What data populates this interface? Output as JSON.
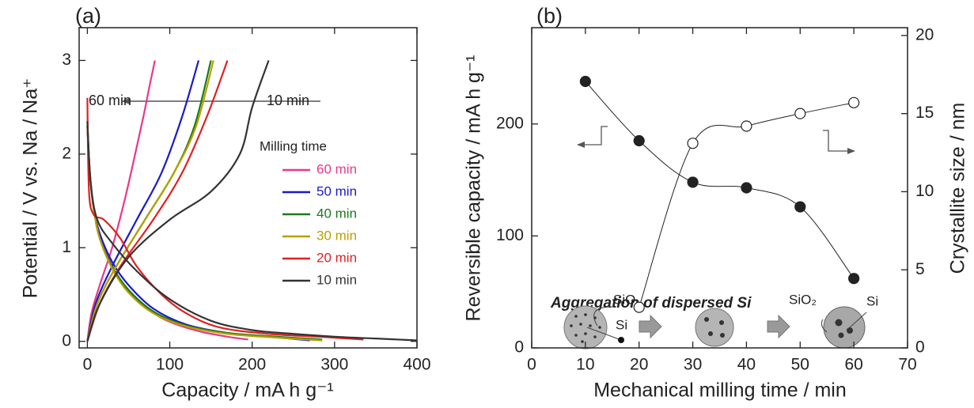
{
  "chart_data": [
    {
      "type": "line",
      "label": "(a)",
      "xlabel": "Capacity / mA h g⁻¹",
      "ylabel": "Potential / V vs. Na / Na⁺",
      "xlim": [
        -10,
        400
      ],
      "ylim": [
        -0.07,
        3.35
      ],
      "xticks": [
        0,
        100,
        200,
        300,
        400
      ],
      "yticks": [
        0,
        1,
        2,
        3
      ],
      "annotations": [
        "60 min",
        "10 min"
      ],
      "legend_title": "Milling time",
      "legend": true,
      "series": [
        {
          "name": "60 min",
          "color": "#e8388a",
          "x": [
            0,
            3,
            8,
            15,
            25,
            40,
            60,
            90,
            130,
            170,
            195,
            null,
            0,
            5,
            15,
            30,
            45,
            58,
            68,
            76,
            82
          ],
          "values": [
            2.3,
            1.8,
            1.4,
            1.15,
            0.9,
            0.65,
            0.45,
            0.25,
            0.12,
            0.05,
            0.02,
            null,
            0,
            0.3,
            0.6,
            1.0,
            1.5,
            2.0,
            2.4,
            2.75,
            3.0
          ]
        },
        {
          "name": "50 min",
          "color": "#1a1acc",
          "x": [
            0,
            3,
            8,
            15,
            30,
            50,
            80,
            120,
            170,
            220,
            270,
            null,
            0,
            10,
            30,
            60,
            90,
            115,
            135
          ],
          "values": [
            2.3,
            1.8,
            1.4,
            1.15,
            0.85,
            0.6,
            0.35,
            0.18,
            0.09,
            0.05,
            0.01,
            null,
            0,
            0.4,
            0.8,
            1.3,
            1.8,
            2.4,
            3.0
          ]
        },
        {
          "name": "40 min",
          "color": "#1a7a1a",
          "x": [
            0,
            3,
            8,
            15,
            30,
            50,
            80,
            120,
            170,
            230,
            285,
            null,
            0,
            12,
            35,
            70,
            105,
            130,
            150
          ],
          "values": [
            2.35,
            1.8,
            1.4,
            1.1,
            0.8,
            0.55,
            0.32,
            0.17,
            0.09,
            0.05,
            0.02,
            null,
            0,
            0.4,
            0.8,
            1.3,
            1.8,
            2.3,
            3.0
          ]
        },
        {
          "name": "30 min",
          "color": "#b8a000",
          "x": [
            0,
            3,
            8,
            15,
            30,
            50,
            80,
            120,
            170,
            230,
            285,
            null,
            0,
            12,
            35,
            70,
            105,
            132,
            153
          ],
          "values": [
            2.3,
            1.8,
            1.4,
            1.1,
            0.78,
            0.52,
            0.3,
            0.16,
            0.08,
            0.04,
            0.01,
            null,
            0,
            0.4,
            0.8,
            1.3,
            1.8,
            2.3,
            3.0
          ]
        },
        {
          "name": "20 min",
          "color": "#e02020",
          "x": [
            0,
            2,
            8,
            20,
            40,
            60,
            90,
            120,
            160,
            220,
            280,
            335,
            null,
            0,
            15,
            40,
            80,
            115,
            145,
            170
          ],
          "values": [
            2.6,
            1.6,
            1.35,
            1.3,
            1.1,
            0.8,
            0.5,
            0.3,
            0.15,
            0.08,
            0.05,
            0.02,
            null,
            0,
            0.4,
            0.8,
            1.3,
            1.8,
            2.4,
            3.0
          ]
        },
        {
          "name": "10 min",
          "color": "#333333",
          "x": [
            0,
            4,
            12,
            30,
            60,
            100,
            150,
            200,
            250,
            300,
            350,
            400,
            null,
            0,
            15,
            50,
            100,
            150,
            185,
            200,
            220
          ],
          "values": [
            2.35,
            1.7,
            1.3,
            1.05,
            0.75,
            0.45,
            0.22,
            0.12,
            0.08,
            0.05,
            0.03,
            0.01,
            null,
            0,
            0.4,
            0.9,
            1.3,
            1.6,
            2.0,
            2.5,
            3.0
          ]
        }
      ]
    },
    {
      "type": "line",
      "label": "(b)",
      "markers": true,
      "xlabel": "Mechanical milling time / min",
      "ylabel": "Reversible capacity / mA h g⁻¹",
      "y2label": "Crystallite size / nm",
      "xlim": [
        0,
        70
      ],
      "ylim": [
        0,
        286
      ],
      "y2lim": [
        0,
        20.5
      ],
      "xticks": [
        0,
        10,
        20,
        30,
        40,
        50,
        60,
        70
      ],
      "yticks": [
        0,
        100,
        200
      ],
      "y2ticks": [
        0,
        5,
        10,
        15,
        20
      ],
      "inset_title": "Aggregation of dispersed Si",
      "inset_labels": [
        "SiO",
        "Si",
        "SiO₂",
        "Si"
      ],
      "x": [
        10,
        20,
        30,
        40,
        50,
        60
      ],
      "series": [
        {
          "color": "#222222",
          "marker": "filled",
          "values": [
            238,
            185,
            148,
            143,
            126,
            62
          ]
        },
        {
          "color": "#222222",
          "marker": "open",
          "axis": "y2",
          "values": [
            null,
            2.6,
            13.1,
            14.2,
            15.0,
            15.7
          ]
        }
      ]
    }
  ]
}
